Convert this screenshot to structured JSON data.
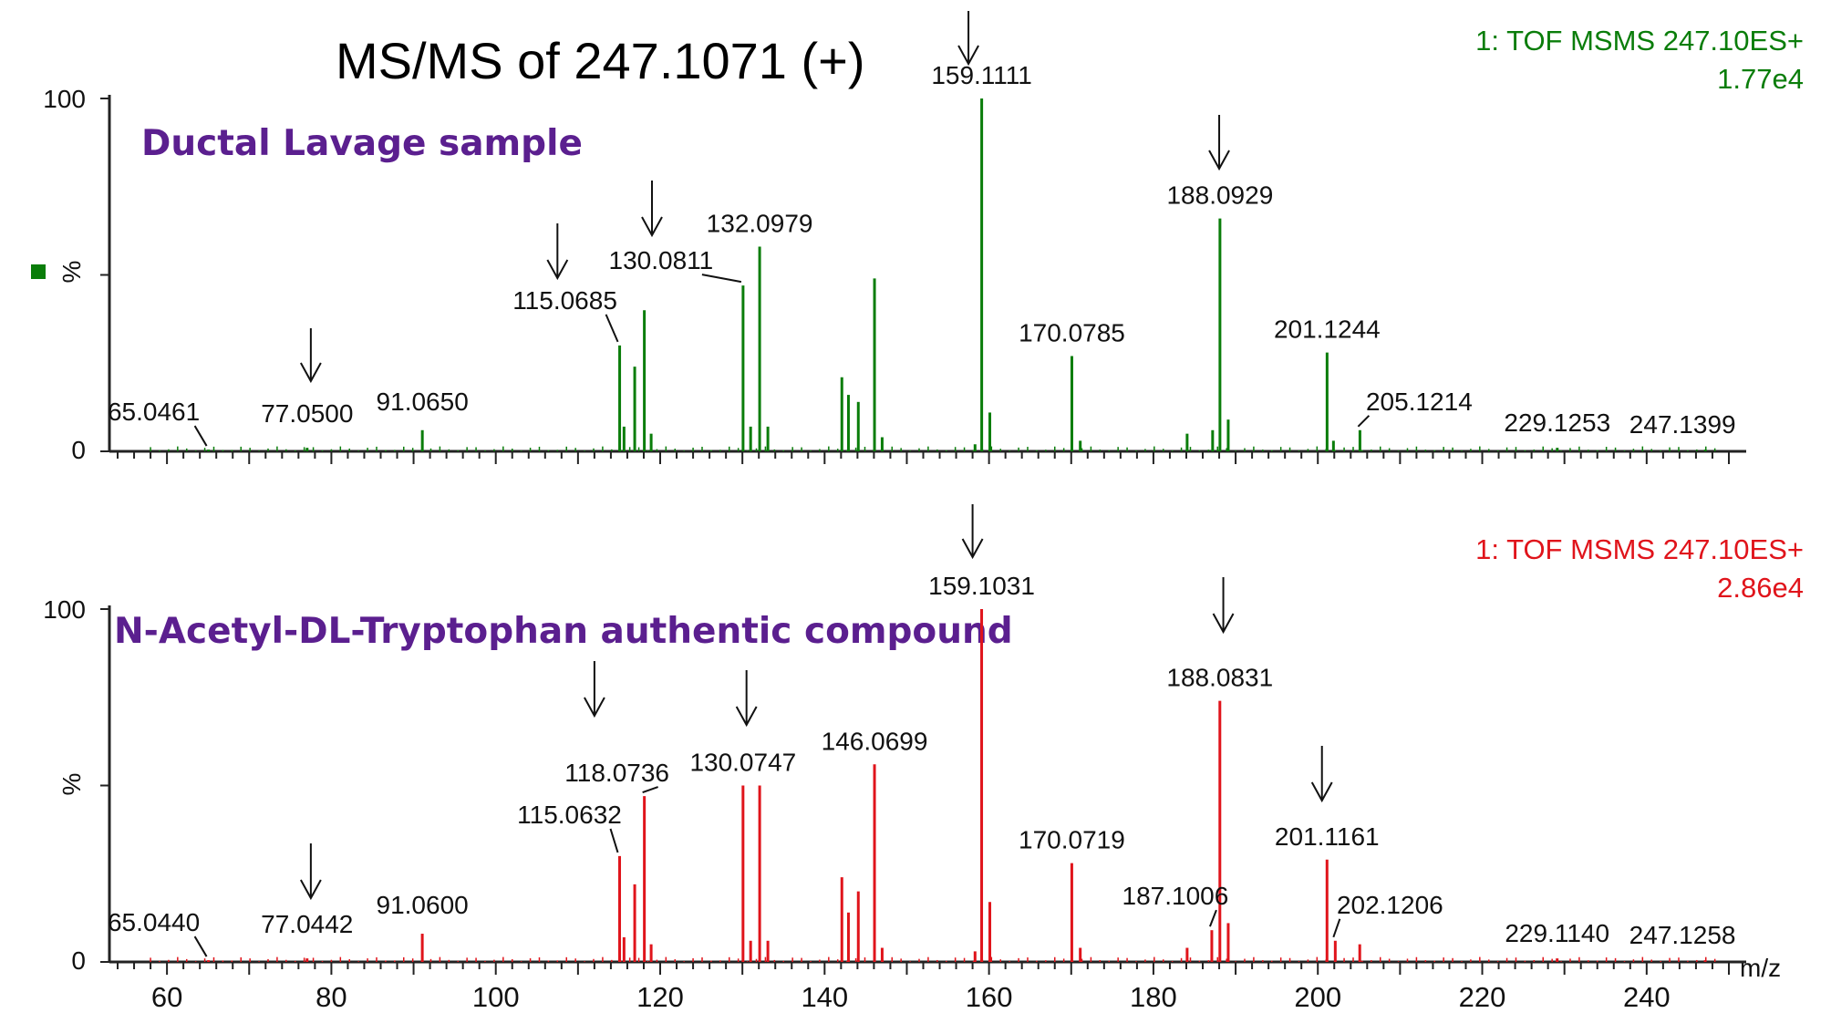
{
  "title": "MS/MS of 247.1071 (+)",
  "colors": {
    "top_panel": "#0a7d0a",
    "bottom_panel": "#e0141b",
    "sample_title": "#5b1f8f",
    "legend_marker": "#0a7d0a"
  },
  "chart_data": [
    {
      "type": "bar",
      "panel": "top",
      "sample_title": "Ductal Lavage  sample",
      "instrument": "1: TOF MSMS 247.10ES+",
      "intensity": "1.77e4",
      "ylabel": "%",
      "xlabel": "",
      "xlim": [
        53,
        251
      ],
      "ylim": [
        0,
        100
      ],
      "yticks": [
        "100",
        "0"
      ],
      "peaks": [
        {
          "x": 65.0461,
          "y": 0.5,
          "label": "65.0461"
        },
        {
          "x": 77.05,
          "y": 1.0,
          "label": "77.0500"
        },
        {
          "x": 91.065,
          "y": 6,
          "label": "91.0650"
        },
        {
          "x": 115.0685,
          "y": 30,
          "label": "115.0685"
        },
        {
          "x": 115.6,
          "y": 7
        },
        {
          "x": 116.9,
          "y": 24
        },
        {
          "x": 118.07,
          "y": 40
        },
        {
          "x": 118.9,
          "y": 5
        },
        {
          "x": 130.0811,
          "y": 47,
          "label": "130.0811"
        },
        {
          "x": 131.0,
          "y": 7
        },
        {
          "x": 132.0979,
          "y": 58,
          "label": "132.0979"
        },
        {
          "x": 133.1,
          "y": 7
        },
        {
          "x": 142.1,
          "y": 21
        },
        {
          "x": 142.9,
          "y": 16
        },
        {
          "x": 144.1,
          "y": 14
        },
        {
          "x": 146.07,
          "y": 49
        },
        {
          "x": 147.0,
          "y": 4
        },
        {
          "x": 158.3,
          "y": 2
        },
        {
          "x": 159.1111,
          "y": 100,
          "label": "159.1111"
        },
        {
          "x": 160.1,
          "y": 11
        },
        {
          "x": 170.0785,
          "y": 27,
          "label": "170.0785"
        },
        {
          "x": 171.1,
          "y": 3
        },
        {
          "x": 184.1,
          "y": 5
        },
        {
          "x": 187.2,
          "y": 6
        },
        {
          "x": 188.0929,
          "y": 66,
          "label": "188.0929"
        },
        {
          "x": 189.1,
          "y": 9
        },
        {
          "x": 201.1244,
          "y": 28,
          "label": "201.1244"
        },
        {
          "x": 201.9,
          "y": 3
        },
        {
          "x": 205.1214,
          "y": 6,
          "label": "205.1214"
        },
        {
          "x": 229.1253,
          "y": 1,
          "label": "229.1253"
        },
        {
          "x": 247.1399,
          "y": 0.5,
          "label": "247.1399"
        }
      ],
      "arrows_at_mz": [
        77.5,
        107.5,
        119,
        157.5,
        188
      ]
    },
    {
      "type": "bar",
      "panel": "bottom",
      "sample_title": "N-Acetyl-DL-Tryptophan authentic compound",
      "instrument": "1: TOF MSMS 247.10ES+",
      "intensity": "2.86e4",
      "ylabel": "%",
      "xlabel": "m/z",
      "xlim": [
        53,
        251
      ],
      "ylim": [
        0,
        100
      ],
      "yticks": [
        "100",
        "0"
      ],
      "xticks": [
        60,
        80,
        100,
        120,
        140,
        160,
        180,
        200,
        220,
        240
      ],
      "peaks": [
        {
          "x": 65.044,
          "y": 0.5,
          "label": "65.0440"
        },
        {
          "x": 77.0442,
          "y": 1.0,
          "label": "77.0442"
        },
        {
          "x": 91.06,
          "y": 8,
          "label": "91.0600"
        },
        {
          "x": 115.0632,
          "y": 30,
          "label": "115.0632"
        },
        {
          "x": 115.6,
          "y": 7
        },
        {
          "x": 116.9,
          "y": 22
        },
        {
          "x": 118.0736,
          "y": 47,
          "label": "118.0736"
        },
        {
          "x": 118.9,
          "y": 5
        },
        {
          "x": 130.0747,
          "y": 50,
          "label": "130.0747"
        },
        {
          "x": 131.0,
          "y": 6
        },
        {
          "x": 132.1,
          "y": 50
        },
        {
          "x": 133.1,
          "y": 6
        },
        {
          "x": 142.1,
          "y": 24
        },
        {
          "x": 142.9,
          "y": 14
        },
        {
          "x": 144.1,
          "y": 20
        },
        {
          "x": 146.0699,
          "y": 56,
          "label": "146.0699"
        },
        {
          "x": 147.0,
          "y": 4
        },
        {
          "x": 158.3,
          "y": 3
        },
        {
          "x": 159.1031,
          "y": 100,
          "label": "159.1031"
        },
        {
          "x": 160.1,
          "y": 17
        },
        {
          "x": 170.0719,
          "y": 28,
          "label": "170.0719"
        },
        {
          "x": 171.1,
          "y": 4
        },
        {
          "x": 184.1,
          "y": 4
        },
        {
          "x": 187.1006,
          "y": 9,
          "label": "187.1006"
        },
        {
          "x": 188.0831,
          "y": 74,
          "label": "188.0831"
        },
        {
          "x": 189.1,
          "y": 11
        },
        {
          "x": 201.1161,
          "y": 29,
          "label": "201.1161"
        },
        {
          "x": 202.1206,
          "y": 6,
          "label": "202.1206"
        },
        {
          "x": 205.1,
          "y": 5
        },
        {
          "x": 229.114,
          "y": 1,
          "label": "229.1140"
        },
        {
          "x": 247.1258,
          "y": 0.5,
          "label": "247.1258"
        }
      ],
      "arrows_at_mz": [
        77.5,
        112,
        130.5,
        158,
        188.5,
        200.5
      ]
    }
  ]
}
